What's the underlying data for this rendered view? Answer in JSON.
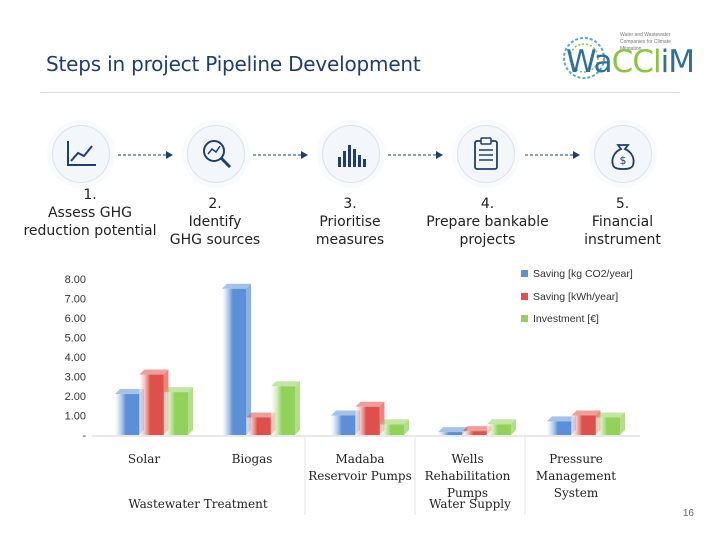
{
  "header": {
    "title": "Steps in project Pipeline Development"
  },
  "logo": {
    "text_main": "Wa",
    "text_accent1": "CCl",
    "text_main2": "i",
    "text_accent2": "M",
    "small_text": "Water and Wastewater Companies for Climate Mitigation"
  },
  "steps": [
    {
      "label": "1.\nAssess GHG\nreduction potential",
      "icon": "line-chart-icon"
    },
    {
      "label": "2.\nIdentify\nGHG sources",
      "icon": "magnifier-chart-icon"
    },
    {
      "label": "3.\nPrioritise\nmeasures",
      "icon": "bar-graph-icon"
    },
    {
      "label": "4.\nPrepare bankable\nprojects",
      "icon": "clipboard-icon"
    },
    {
      "label": "5.\nFinancial\ninstrument",
      "icon": "money-bag-icon"
    }
  ],
  "chart_data": {
    "type": "bar",
    "categories": [
      "Solar",
      "Biogas",
      "Madaba Reservoir Pumps",
      "Wells Rehabilitation Pumps",
      "Pressure Management System"
    ],
    "group_labels": [
      "Wastewater Treatment",
      "Water Supply"
    ],
    "y_tick_labels": [
      "-",
      "1.00",
      "2.00",
      "3.00",
      "4.00",
      "5.00",
      "6.00",
      "7.00",
      "8.00"
    ],
    "ylim": [
      0,
      8
    ],
    "series": [
      {
        "name": "Saving [kg CO2/year]",
        "color": "#5b8fd6",
        "values": [
          2.1,
          7.5,
          1.0,
          0.15,
          0.7
        ]
      },
      {
        "name": "Saving [kWh/year]",
        "color": "#e0504a",
        "values": [
          3.1,
          0.9,
          1.45,
          0.2,
          1.0
        ]
      },
      {
        "name": "Investment [€]",
        "color": "#93d25a",
        "values": [
          2.2,
          2.5,
          0.55,
          0.55,
          0.9
        ]
      }
    ],
    "legend_position": "top-right"
  },
  "page_number": "16"
}
